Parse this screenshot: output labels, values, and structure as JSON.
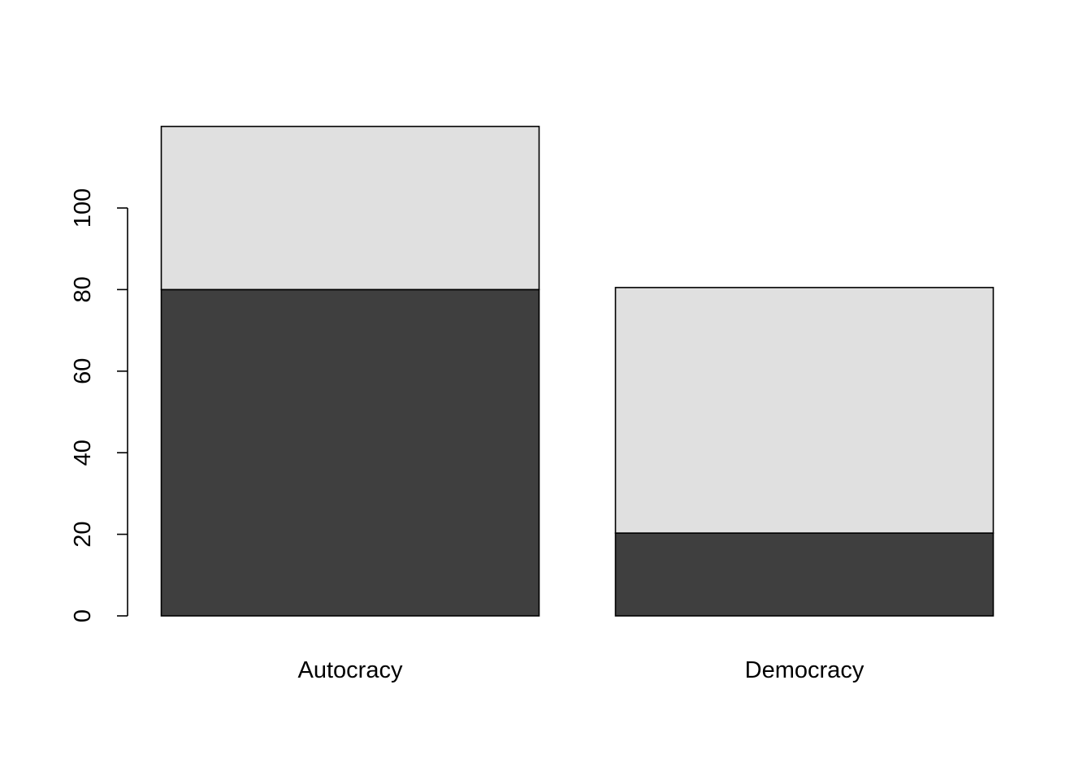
{
  "chart_data": {
    "type": "bar",
    "stacked": true,
    "categories": [
      "Autocracy",
      "Democracy"
    ],
    "series": [
      {
        "values": [
          80,
          20.3
        ],
        "color": "#3f3f3f"
      },
      {
        "values": [
          40,
          60.2
        ],
        "color": "#e0e0e0"
      }
    ],
    "ylim": [
      0,
      120
    ],
    "yticks": [
      0,
      20,
      40,
      60,
      80,
      100
    ],
    "grid": false,
    "legend": "none"
  }
}
